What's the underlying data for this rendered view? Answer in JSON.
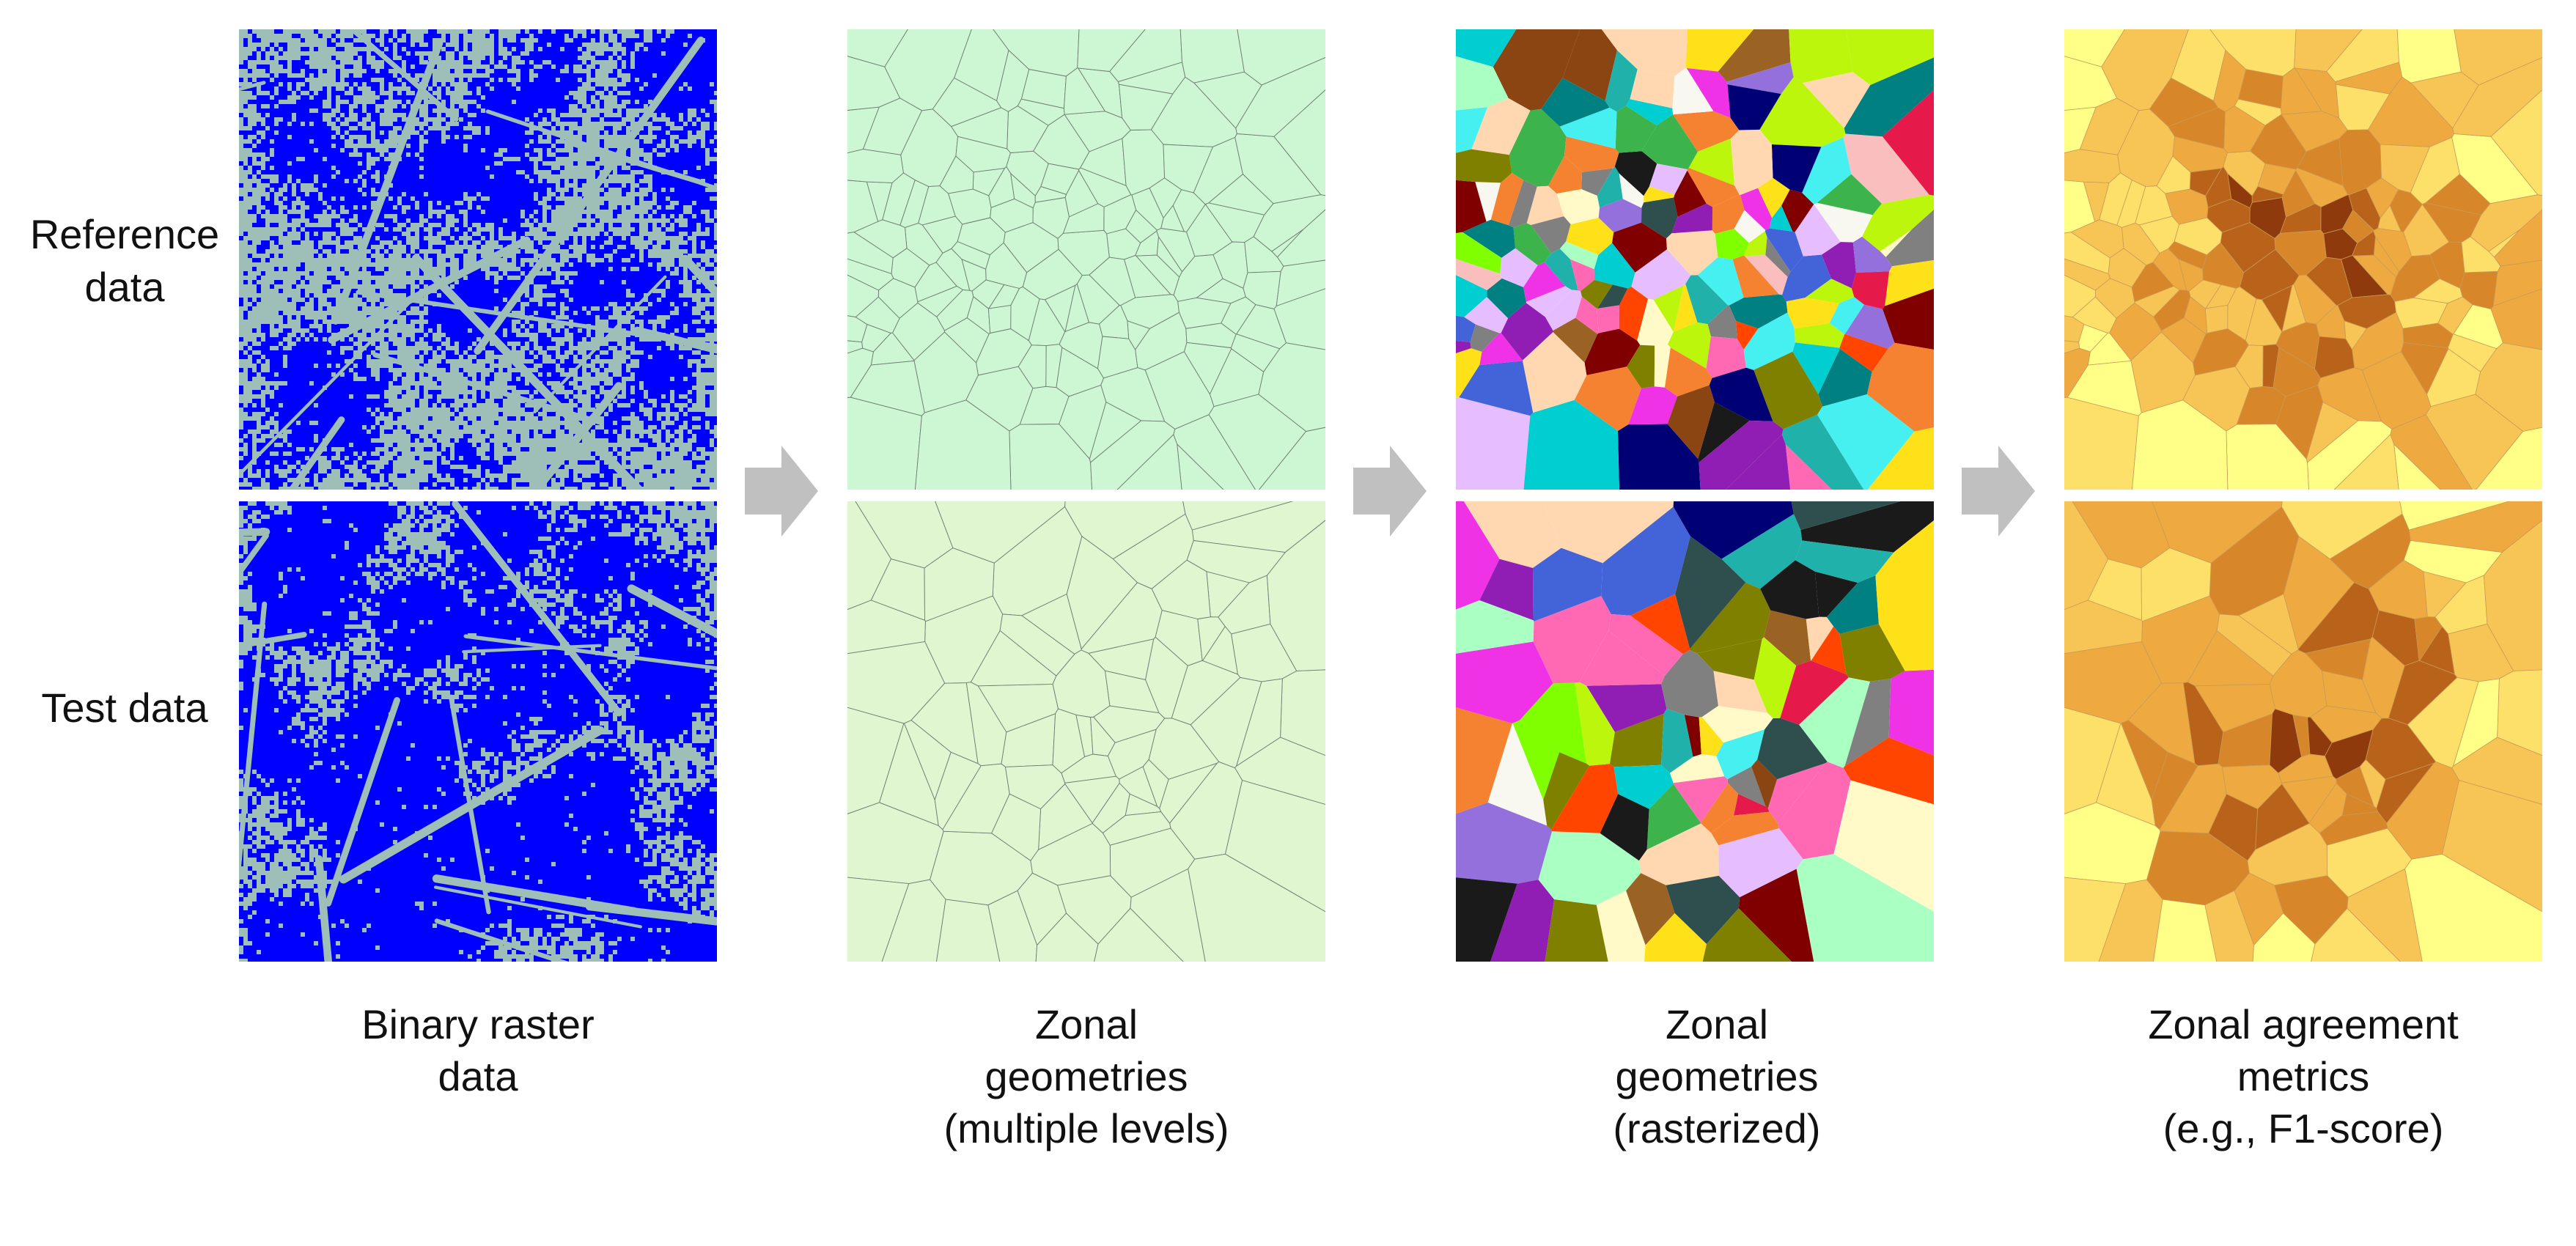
{
  "row_labels": {
    "reference": "Reference\ndata",
    "test": "Test data"
  },
  "captions": [
    "Binary raster\ndata",
    "Zonal\ngeometries\n(multiple levels)",
    "Zonal\ngeometries\n(rasterized)",
    "Zonal agreement\nmetrics\n(e.g., F1-score)"
  ],
  "colors": {
    "raster_background": "#9ebfb8",
    "raster_foreground": "#0000ff",
    "geometry_fill_reference": "#ccf7d2",
    "geometry_fill_test": "#e0f6d1",
    "geometry_line": "#6d7d72",
    "arrow": "#c0c0c0",
    "metric_palette": [
      "#ffff88",
      "#fde06a",
      "#f7c555",
      "#eeaa40",
      "#d8862a",
      "#b9621a",
      "#8e3a0c",
      "#6b1604"
    ],
    "rasterized_palette": [
      "#e6194b",
      "#3cb44b",
      "#ffe119",
      "#4363d8",
      "#f58231",
      "#911eb4",
      "#46f0f0",
      "#f032e6",
      "#bcf60c",
      "#fabebe",
      "#008080",
      "#e6beff",
      "#9a6324",
      "#fffac8",
      "#800000",
      "#aaffc3",
      "#808000",
      "#ffd8b1",
      "#000075",
      "#808080",
      "#1a1a1a",
      "#f8f8f0",
      "#2f4f4f",
      "#ff69b4",
      "#7fff00",
      "#8b4513",
      "#20b2aa",
      "#9370db",
      "#ff4500",
      "#00ced1"
    ]
  }
}
